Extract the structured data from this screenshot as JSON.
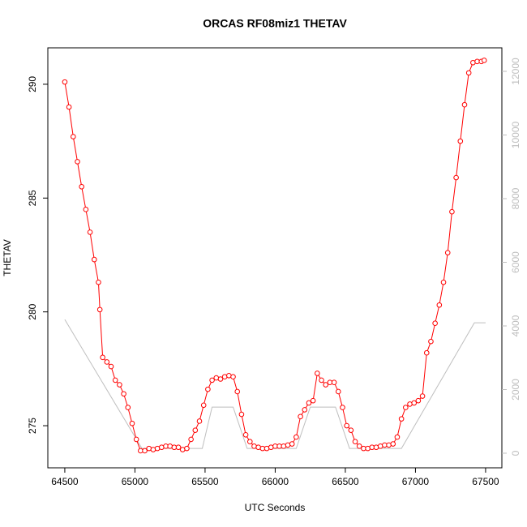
{
  "chart_data": {
    "type": "line",
    "title": "ORCAS RF08miz1 THETAV",
    "xlabel": "UTC Seconds",
    "ylabel": "THETAV",
    "xlim": [
      64379,
      67616
    ],
    "ylim": [
      273.15,
      291.6
    ],
    "y2lim": [
      -459,
      12739
    ],
    "xticks": [
      64500,
      65000,
      65500,
      66000,
      66500,
      67000,
      67500
    ],
    "yticks": [
      275,
      280,
      285,
      290
    ],
    "y2ticks": [
      0,
      2000,
      4000,
      6000,
      8000,
      10000,
      12000
    ],
    "series": [
      {
        "color": "#bebebe",
        "axis": "y2",
        "markers": false,
        "x": [
          64500,
          65050,
          65480,
          65550,
          65700,
          65800,
          66150,
          66250,
          66430,
          66530,
          66900,
          67420,
          67500
        ],
        "values": [
          4200,
          150,
          150,
          1450,
          1450,
          150,
          150,
          1450,
          1450,
          150,
          150,
          4100,
          4100
        ]
      },
      {
        "color": "#ff0000",
        "axis": "y",
        "markers": true,
        "x": [
          64500,
          64530,
          64560,
          64590,
          64620,
          64650,
          64680,
          64710,
          64740,
          64750,
          64770,
          64800,
          64830,
          64860,
          64890,
          64920,
          64950,
          64980,
          65010,
          65040,
          65070,
          65100,
          65130,
          65160,
          65190,
          65220,
          65250,
          65280,
          65310,
          65340,
          65370,
          65400,
          65430,
          65460,
          65490,
          65520,
          65550,
          65580,
          65610,
          65640,
          65670,
          65700,
          65730,
          65760,
          65790,
          65820,
          65850,
          65880,
          65910,
          65940,
          65970,
          66000,
          66030,
          66060,
          66090,
          66120,
          66150,
          66180,
          66210,
          66240,
          66270,
          66300,
          66330,
          66360,
          66390,
          66420,
          66450,
          66480,
          66510,
          66540,
          66570,
          66600,
          66630,
          66660,
          66690,
          66720,
          66750,
          66780,
          66810,
          66840,
          66870,
          66900,
          66930,
          66960,
          66990,
          67020,
          67050,
          67080,
          67110,
          67140,
          67170,
          67200,
          67230,
          67260,
          67290,
          67320,
          67350,
          67380,
          67410,
          67440,
          67470,
          67490
        ],
        "values": [
          290.1,
          289.0,
          287.7,
          286.6,
          285.5,
          284.5,
          283.5,
          282.3,
          281.3,
          280.1,
          278.0,
          277.8,
          277.6,
          277.0,
          276.8,
          276.4,
          275.8,
          275.1,
          274.4,
          273.9,
          273.9,
          274.0,
          273.95,
          274.0,
          274.05,
          274.1,
          274.1,
          274.05,
          274.05,
          273.95,
          274.0,
          274.4,
          274.8,
          275.2,
          275.9,
          276.6,
          277.0,
          277.1,
          277.05,
          277.15,
          277.2,
          277.15,
          276.5,
          275.5,
          274.6,
          274.3,
          274.1,
          274.05,
          274.0,
          274.0,
          274.05,
          274.1,
          274.1,
          274.1,
          274.15,
          274.2,
          274.5,
          275.4,
          275.7,
          276.0,
          276.1,
          277.3,
          277.0,
          276.8,
          276.9,
          276.9,
          276.5,
          275.8,
          275.0,
          274.8,
          274.3,
          274.1,
          274.0,
          274.0,
          274.05,
          274.05,
          274.1,
          274.15,
          274.15,
          274.2,
          274.5,
          275.3,
          275.8,
          275.95,
          276.0,
          276.1,
          276.3,
          278.2,
          278.7,
          279.5,
          280.3,
          281.3,
          282.6,
          284.4,
          285.9,
          287.5,
          289.1,
          290.5,
          290.95,
          291.0,
          291.0,
          291.05
        ]
      }
    ]
  }
}
